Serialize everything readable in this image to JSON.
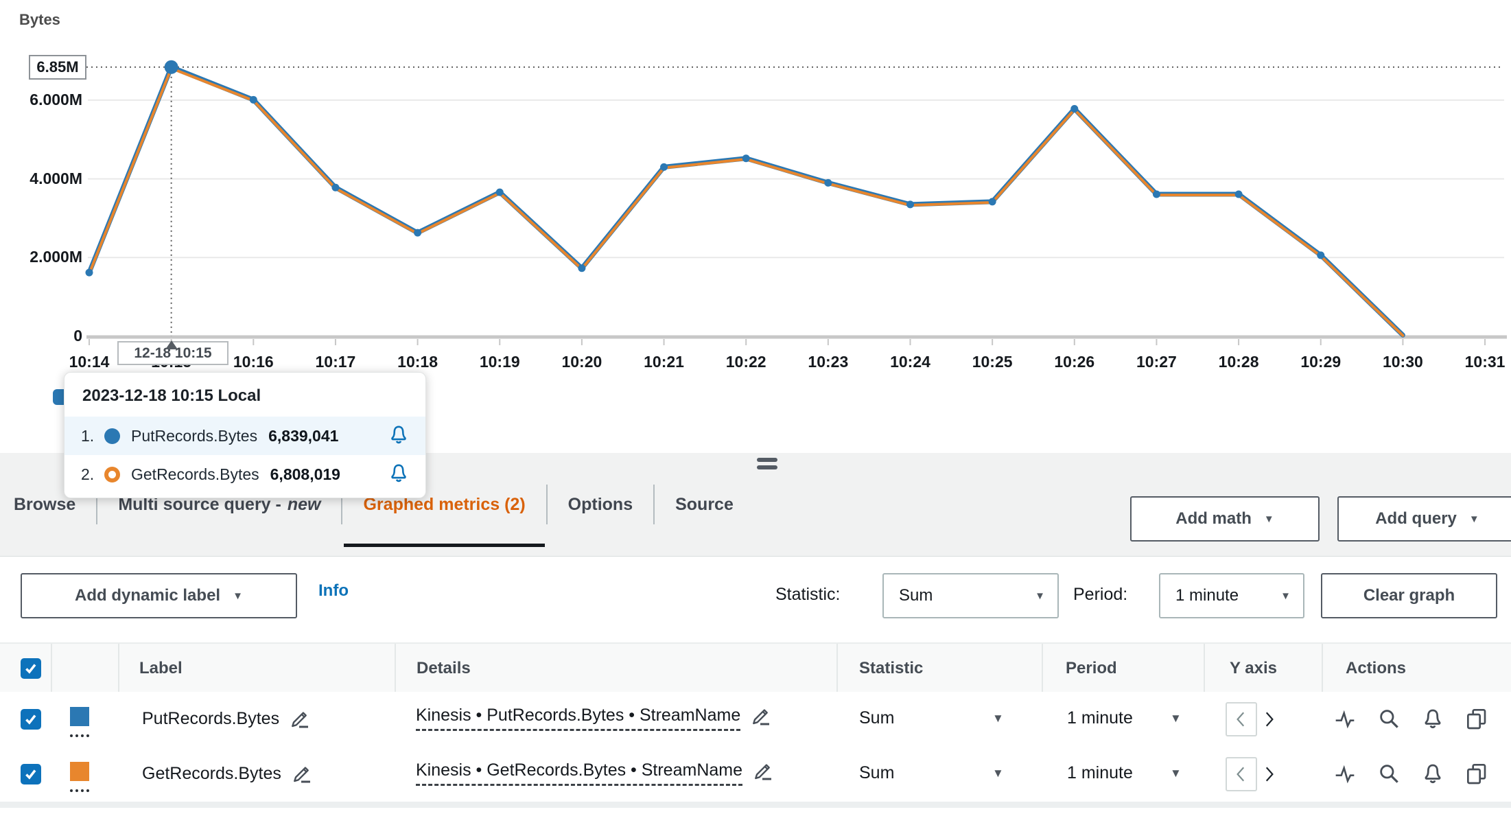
{
  "chart_data": {
    "type": "line",
    "title": "Bytes",
    "ylabel": "Bytes",
    "x": [
      "10:14",
      "10:15",
      "10:16",
      "10:17",
      "10:18",
      "10:19",
      "10:20",
      "10:21",
      "10:22",
      "10:23",
      "10:24",
      "10:25",
      "10:26",
      "10:27",
      "10:28",
      "10:29",
      "10:30",
      "10:31"
    ],
    "yticks": [
      {
        "value": 0,
        "label": "0"
      },
      {
        "value": 2000000,
        "label": "2.000M"
      },
      {
        "value": 4000000,
        "label": "4.000M"
      },
      {
        "value": 6000000,
        "label": "6.000M"
      }
    ],
    "ylim": [
      0,
      7200000
    ],
    "grid": true,
    "legend_position": "bottom-left",
    "series": [
      {
        "name": "PutRecords.Bytes",
        "color": "#2b78b3",
        "marker": "filled-circle",
        "values": [
          1620000,
          6839041,
          6010000,
          3780000,
          2630000,
          3660000,
          1730000,
          4300000,
          4520000,
          3900000,
          3350000,
          3420000,
          5780000,
          3610000,
          3610000,
          2060000,
          30000
        ]
      },
      {
        "name": "GetRecords.Bytes",
        "color": "#e8862d",
        "marker": "open-circle",
        "values": [
          1590000,
          6808019,
          5990000,
          3760000,
          2610000,
          3640000,
          1710000,
          4280000,
          4500000,
          3880000,
          3330000,
          3400000,
          5760000,
          3590000,
          3590000,
          2040000,
          20000
        ]
      }
    ],
    "hover": {
      "x_index": 1,
      "x_label": "10:15",
      "value_label": "6.85M",
      "date_label": "12-18 10:15"
    }
  },
  "tooltip": {
    "title": "2023-12-18 10:15 Local",
    "rows": [
      {
        "rank": "1.",
        "series": "PutRecords.Bytes",
        "value": "6,839,041",
        "color": "#2b78b3",
        "marker": "filled"
      },
      {
        "rank": "2.",
        "series": "GetRecords.Bytes",
        "value": "6,808,019",
        "color": "#e8862d",
        "marker": "open"
      }
    ]
  },
  "tabs": [
    {
      "label": "Browse",
      "active": false
    },
    {
      "label": "Multi source query -",
      "suffix_italic": "new",
      "active": false
    },
    {
      "label": "Graphed metrics (2)",
      "active": true
    },
    {
      "label": "Options",
      "active": false
    },
    {
      "label": "Source",
      "active": false
    }
  ],
  "toolbar": {
    "add_math_label": "Add math",
    "add_query_label": "Add query"
  },
  "controls": {
    "add_dynamic_label": "Add dynamic label",
    "info_link": "Info",
    "statistic_label": "Statistic:",
    "statistic_value": "Sum",
    "period_label": "Period:",
    "period_value": "1 minute",
    "clear_graph_label": "Clear graph"
  },
  "table": {
    "select_all_checked": true,
    "headers": [
      "Label",
      "Details",
      "Statistic",
      "Period",
      "Y axis",
      "Actions"
    ],
    "rows": [
      {
        "checked": true,
        "color": "#2b78b3",
        "label": "PutRecords.Bytes",
        "details": "Kinesis • PutRecords.Bytes • StreamName",
        "statistic": "Sum",
        "period": "1 minute"
      },
      {
        "checked": true,
        "color": "#e8862d",
        "label": "GetRecords.Bytes",
        "details": "Kinesis • GetRecords.Bytes • StreamName",
        "statistic": "Sum",
        "period": "1 minute"
      }
    ]
  },
  "colors": {
    "accent_orange": "#d9620b",
    "link_blue": "#0c72b8",
    "series_blue": "#2b78b3",
    "series_orange": "#e8862d",
    "icon_gray": "#474e57"
  }
}
